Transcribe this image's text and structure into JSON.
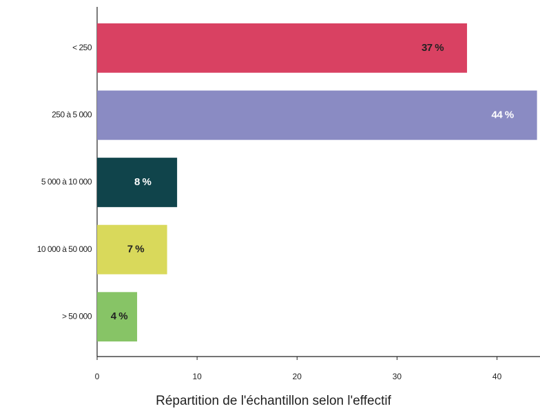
{
  "chart_data": {
    "type": "barh",
    "categories": [
      "< 250",
      "250 à 5 000",
      "5 000 à 10 000",
      "10 000 à 50 000",
      "> 50 000"
    ],
    "values": [
      37,
      44,
      8,
      7,
      4
    ],
    "value_labels": [
      "37 %",
      "44 %",
      "8 %",
      "7 %",
      "4 %"
    ],
    "colors": [
      "#d94162",
      "#8a8bc3",
      "#10444b",
      "#d9d95b",
      "#87c466"
    ],
    "value_label_colors": [
      "#222222",
      "#ffffff",
      "#ffffff",
      "#222222",
      "#222222"
    ],
    "xlabel": "Répartition de l'échantillon selon l'effectif",
    "xlim": [
      0,
      44.3
    ],
    "xticks": [
      0,
      10,
      20,
      30,
      40
    ],
    "grid": false
  }
}
